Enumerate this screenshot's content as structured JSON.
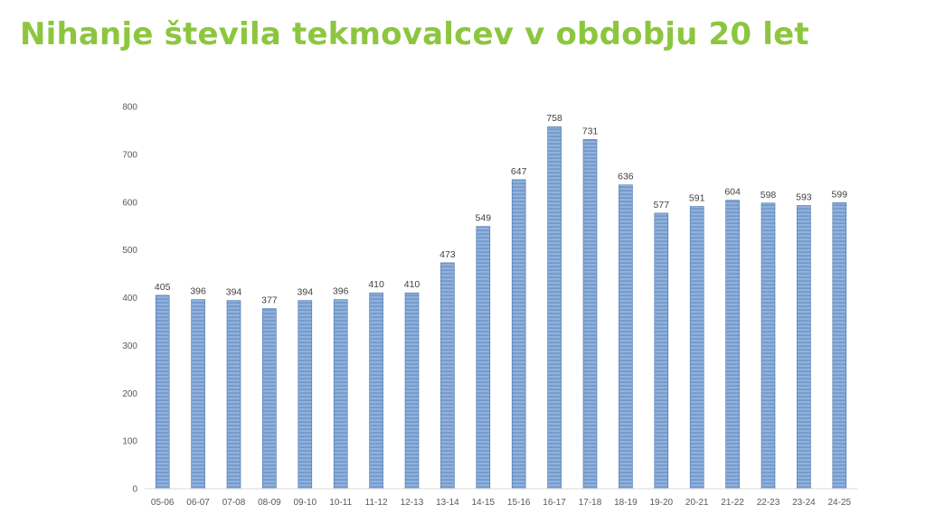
{
  "colors": {
    "title": "#8cc63f",
    "bar_fill": "#8fb1dc",
    "bar_stripe": "#5f86bd",
    "bar_edge": "#4a74ad",
    "axis": "#d9d9d9"
  },
  "chart_data": {
    "type": "bar",
    "title": "Nihanje števila tekmovalcev v obdobju 20 let",
    "xlabel": "",
    "ylabel": "",
    "ylim": [
      0,
      800
    ],
    "yticks": [
      "0",
      "100",
      "200",
      "300",
      "400",
      "500",
      "600",
      "700",
      "800"
    ],
    "grid": false,
    "legend": "none",
    "categories": [
      "05-06",
      "06-07",
      "07-08",
      "08-09",
      "09-10",
      "10-11",
      "11-12",
      "12-13",
      "13-14",
      "14-15",
      "15-16",
      "16-17",
      "17-18",
      "18-19",
      "19-20",
      "20-21",
      "21-22",
      "22-23",
      "23-24",
      "24-25"
    ],
    "values": [
      405,
      396,
      394,
      377,
      394,
      396,
      410,
      410,
      473,
      549,
      647,
      758,
      731,
      636,
      577,
      591,
      604,
      598,
      593,
      599
    ],
    "data_labels": [
      "405",
      "396",
      "394",
      "377",
      "394",
      "396",
      "410",
      "410",
      "473",
      "549",
      "647",
      "758",
      "731",
      "636",
      "577",
      "591",
      "604",
      "598",
      "593",
      "599"
    ]
  }
}
